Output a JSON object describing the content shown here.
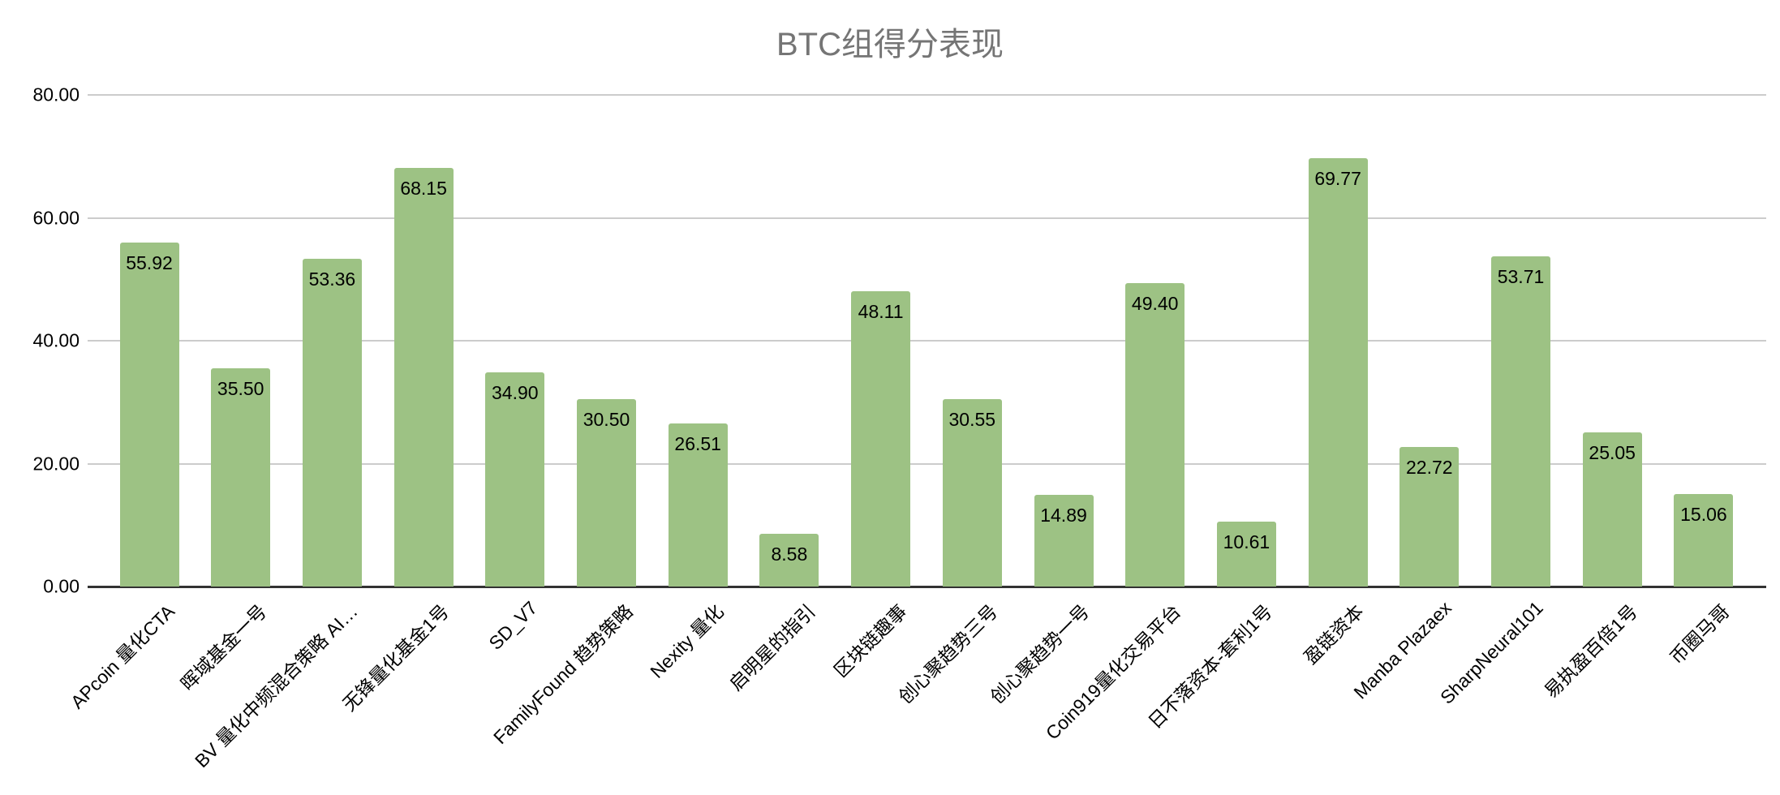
{
  "chart_data": {
    "type": "bar",
    "title": "BTC组得分表现",
    "xlabel": "",
    "ylabel": "",
    "ylim": [
      0,
      80
    ],
    "yticks": [
      "0.00",
      "20.00",
      "40.00",
      "60.00",
      "80.00"
    ],
    "grid": true,
    "legend": "none",
    "bar_color": "#9dc284",
    "categories": [
      "APcoin 量化CTA",
      "晖域基金一号",
      "BV 量化中频混合策略 AI…",
      "无锋量化基金1号",
      "SD_V7",
      "FamilyFound 趋势策略",
      "Nexity 量化",
      "启明星的指引",
      "区块链趣事",
      "创心聚趋势三号",
      "创心聚趋势一号",
      "Coin919量化交易平台",
      "日不落资本-套利1号",
      "盈链资本",
      "Manba Plazaex",
      "SharpNeural101",
      "易执盈百倍1号",
      "币圈马哥"
    ],
    "values": [
      55.92,
      35.5,
      53.36,
      68.15,
      34.9,
      30.5,
      26.51,
      8.58,
      48.11,
      30.55,
      14.89,
      49.4,
      10.61,
      69.77,
      22.72,
      53.71,
      25.05,
      15.06
    ],
    "value_labels": [
      "55.92",
      "35.50",
      "53.36",
      "68.15",
      "34.90",
      "30.50",
      "26.51",
      "8.58",
      "48.11",
      "30.55",
      "14.89",
      "49.40",
      "10.61",
      "69.77",
      "22.72",
      "53.71",
      "25.05",
      "15.06"
    ]
  }
}
